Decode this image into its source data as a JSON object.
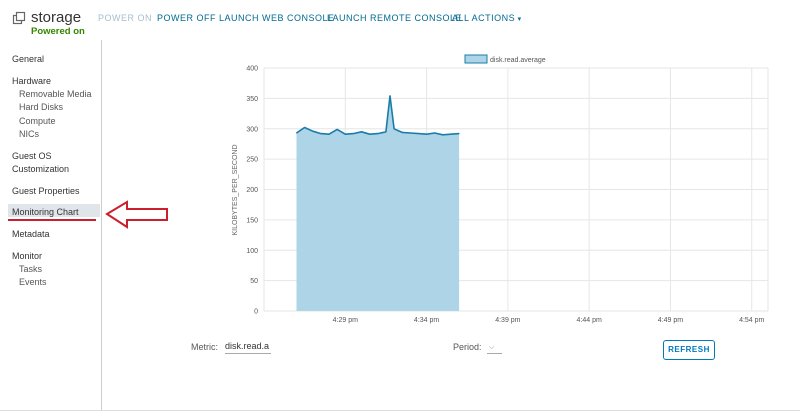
{
  "vm": {
    "name": "storage",
    "state": "Powered on"
  },
  "actions": {
    "power_on": "POWER ON",
    "power_off": "POWER OFF",
    "launch_web_console": "LAUNCH WEB CONSOLE",
    "launch_remote_console": "LAUNCH REMOTE CONSOLE",
    "all_actions": "ALL ACTIONS"
  },
  "sidebar": {
    "general": "General",
    "hardware": "Hardware",
    "removable_media": "Removable Media",
    "hard_disks": "Hard Disks",
    "compute": "Compute",
    "nics": "NICs",
    "guest_os": "Guest OS",
    "customization": "Customization",
    "guest_properties": "Guest Properties",
    "monitoring_chart": "Monitoring Chart",
    "metadata": "Metadata",
    "monitor": "Monitor",
    "tasks": "Tasks",
    "events": "Events"
  },
  "controls": {
    "metric_label": "Metric:",
    "metric_value": "disk.read.a",
    "period_label": "Period:",
    "period_value": "",
    "refresh_label": "REFRESH"
  },
  "colors": {
    "accent": "#006a91",
    "series_fill": "#aed4e8",
    "series_line": "#1a7ca8",
    "powered_on": "#318700",
    "annotation_arrow": "#cc1f2d"
  },
  "chart_data": {
    "type": "area",
    "series": [
      {
        "name": "disk.read.average",
        "x": [
          "4:26:00",
          "4:26:30",
          "4:27:00",
          "4:27:30",
          "4:28:00",
          "4:28:30",
          "4:29:00",
          "4:29:30",
          "4:30:00",
          "4:30:30",
          "4:31:00",
          "4:31:30",
          "4:31:45",
          "4:32:00",
          "4:32:15",
          "4:32:30",
          "4:33:00",
          "4:33:30",
          "4:34:00",
          "4:34:30",
          "4:35:00",
          "4:35:30",
          "4:36:00"
        ],
        "values": [
          293,
          302,
          296,
          292,
          291,
          299,
          291,
          292,
          295,
          291,
          292,
          295,
          354,
          300,
          297,
          294,
          293,
          292,
          291,
          293,
          290,
          291,
          292
        ]
      }
    ],
    "ylabel": "KILOBYTES_PER_SECOND",
    "ylim": [
      0,
      400
    ],
    "yticks": [
      0,
      50,
      100,
      150,
      200,
      250,
      300,
      350,
      400
    ],
    "xlim": [
      "4:24 pm",
      "4:55 pm"
    ],
    "xticks": [
      "4:29 pm",
      "4:34 pm",
      "4:39 pm",
      "4:44 pm",
      "4:49 pm",
      "4:54 pm"
    ],
    "xtick_minutes": [
      5,
      10,
      15,
      20,
      25,
      30
    ],
    "grid": true,
    "legend": "top-center"
  }
}
